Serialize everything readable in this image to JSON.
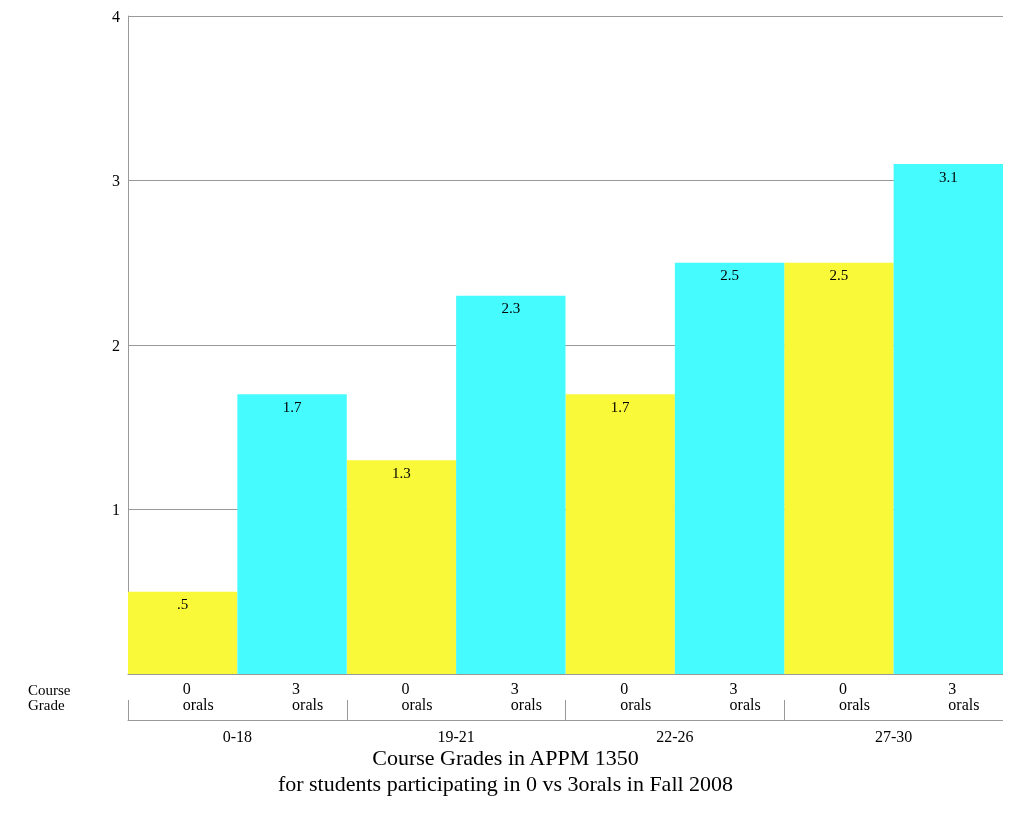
{
  "chart_data": {
    "type": "bar",
    "title": "Course Grades in APPM 1350",
    "subtitle": "for students participating in 0 vs 3orals in Fall 2008",
    "ylabel": "Course Grade",
    "categories": [
      "0-18",
      "19-21",
      "22-26",
      "27-30"
    ],
    "series": [
      {
        "name": "0 orals",
        "color": "#f9f93a",
        "values": [
          0.5,
          1.3,
          1.7,
          2.5
        ],
        "value_labels": [
          ".5",
          "1.3",
          "1.7",
          "2.5"
        ]
      },
      {
        "name": "3 orals",
        "color": "#45fbfd",
        "values": [
          1.7,
          2.3,
          2.5,
          3.1
        ],
        "value_labels": [
          "1.7",
          "2.3",
          "2.5",
          "3.1"
        ]
      }
    ],
    "ylim": [
      0,
      4
    ],
    "yticks": [
      1,
      2,
      3,
      4
    ],
    "grid": "y",
    "legend": false
  }
}
